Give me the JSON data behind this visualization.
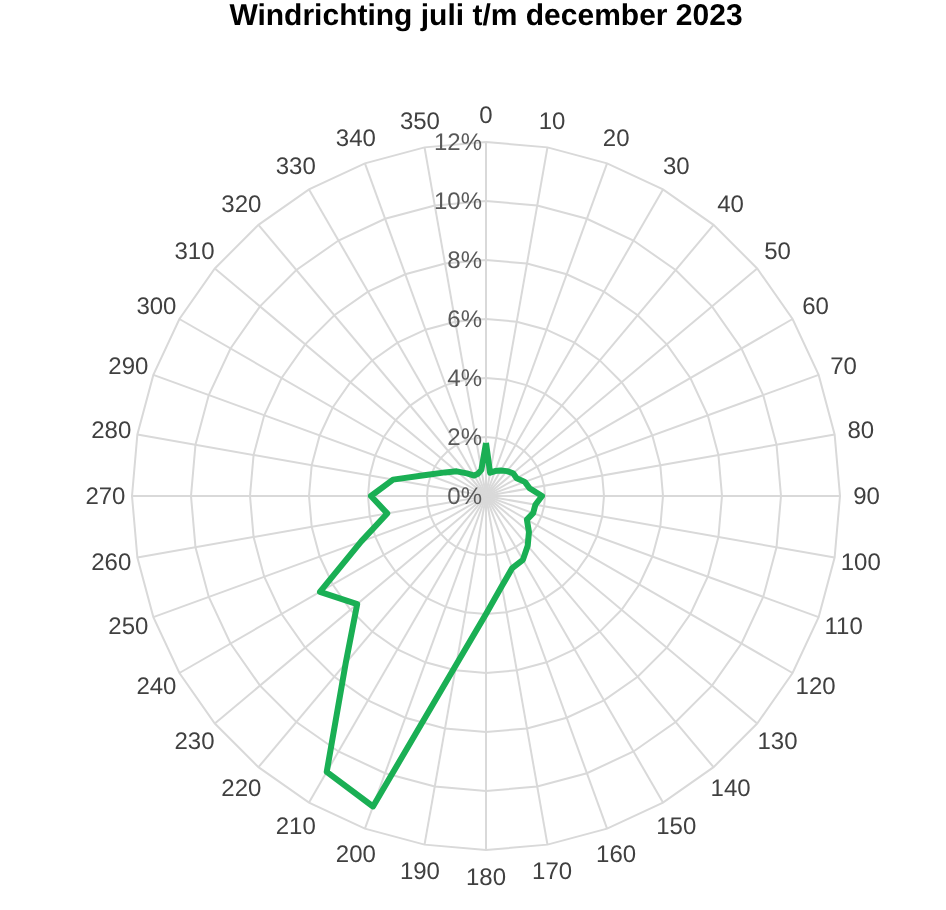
{
  "chart_data": {
    "type": "radar",
    "title": "Windrichting juli t/m december 2023",
    "categories": [
      "0",
      "10",
      "20",
      "30",
      "40",
      "50",
      "60",
      "70",
      "80",
      "90",
      "100",
      "110",
      "120",
      "130",
      "140",
      "150",
      "160",
      "170",
      "180",
      "190",
      "200",
      "210",
      "220",
      "230",
      "240",
      "250",
      "260",
      "270",
      "280",
      "290",
      "300",
      "310",
      "320",
      "330",
      "340",
      "350"
    ],
    "series": [
      {
        "color": "#1aaf54",
        "values": [
          1.8,
          0.8,
          0.9,
          1.0,
          1.1,
          1.2,
          1.2,
          1.4,
          1.5,
          1.9,
          1.7,
          1.7,
          1.6,
          1.9,
          2.2,
          2.5,
          2.6,
          3.1,
          4.0,
          5.8,
          11.2,
          10.8,
          7.4,
          5.7,
          6.5,
          4.5,
          3.4,
          3.9,
          3.2,
          2.1,
          1.6,
          1.3,
          1.0,
          0.8,
          0.8,
          0.9
        ]
      }
    ],
    "ylim": [
      0,
      12
    ],
    "yticks": [
      {
        "value": 0,
        "label": "0%"
      },
      {
        "value": 2,
        "label": "2%"
      },
      {
        "value": 4,
        "label": "4%"
      },
      {
        "value": 6,
        "label": "6%"
      },
      {
        "value": 8,
        "label": "8%"
      },
      {
        "value": 10,
        "label": "10%"
      },
      {
        "value": 12,
        "label": "12%"
      }
    ],
    "grid": true
  }
}
